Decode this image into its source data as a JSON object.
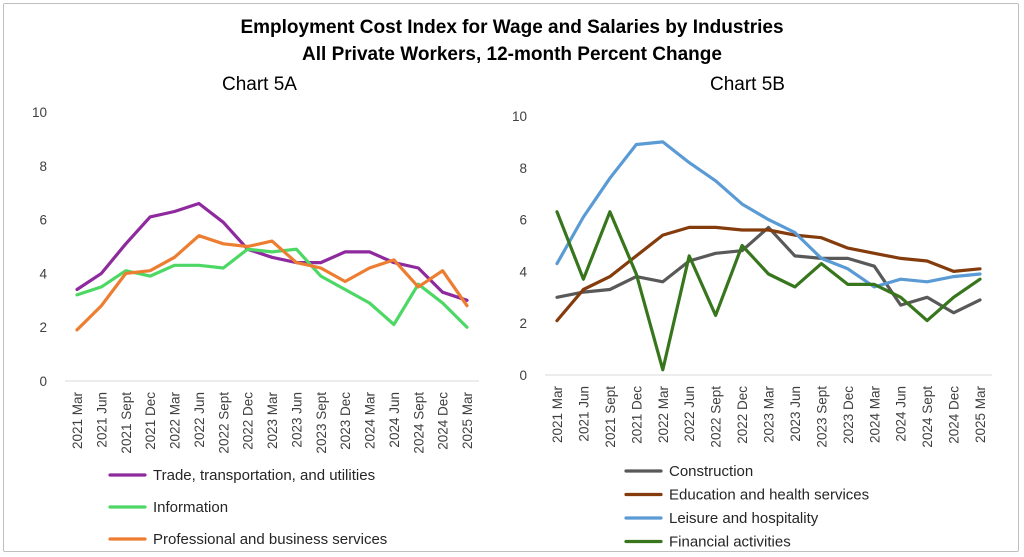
{
  "title_line1": "Employment Cost Index for Wage and Salaries by Industries",
  "title_line2": "All Private Workers, 12-month Percent Change",
  "chart_data": [
    {
      "type": "line",
      "subtitle": "Chart 5A",
      "categories": [
        "2021 Mar",
        "2021 Jun",
        "2021 Sept",
        "2021 Dec",
        "2022 Mar",
        "2022 Jun",
        "2022 Sept",
        "2022 Dec",
        "2023 Mar",
        "2023 Jun",
        "2023 Sept",
        "2023 Dec",
        "2024 Mar",
        "2024 Jun",
        "2024 Sept",
        "2024 Dec",
        "2025 Mar"
      ],
      "ylim": [
        0,
        10
      ],
      "yticks": [
        0,
        2,
        4,
        6,
        8,
        10
      ],
      "grid": false,
      "legend_position": "bottom",
      "series": [
        {
          "name": "Trade, transportation, and utilities",
          "color": "#8e2a9e",
          "values": [
            3.4,
            4.0,
            5.1,
            6.1,
            6.3,
            6.6,
            5.9,
            4.9,
            4.6,
            4.4,
            4.4,
            4.8,
            4.8,
            4.4,
            4.2,
            3.3,
            3.0
          ]
        },
        {
          "name": "Information",
          "color": "#4dd865",
          "values": [
            3.2,
            3.5,
            4.1,
            3.9,
            4.3,
            4.3,
            4.2,
            4.9,
            4.8,
            4.9,
            3.9,
            3.4,
            2.9,
            2.1,
            3.6,
            2.9,
            2.0
          ]
        },
        {
          "name": "Professional and business services",
          "color": "#ed7d31",
          "values": [
            1.9,
            2.8,
            4.0,
            4.1,
            4.6,
            5.4,
            5.1,
            5.0,
            5.2,
            4.4,
            4.2,
            3.7,
            4.2,
            4.5,
            3.5,
            4.1,
            2.8
          ]
        }
      ]
    },
    {
      "type": "line",
      "subtitle": "Chart 5B",
      "categories": [
        "2021 Mar",
        "2021 Jun",
        "2021 Sept",
        "2021 Dec",
        "2022 Mar",
        "2022 Jun",
        "2022 Sept",
        "2022 Dec",
        "2023 Mar",
        "2023 Jun",
        "2023 Sept",
        "2023 Dec",
        "2024 Mar",
        "2024 Jun",
        "2024 Sept",
        "2024 Dec",
        "2025 Mar"
      ],
      "ylim": [
        0,
        10
      ],
      "yticks": [
        0,
        2,
        4,
        6,
        8,
        10
      ],
      "grid": false,
      "legend_position": "bottom",
      "series": [
        {
          "name": "Construction",
          "color": "#595959",
          "values": [
            3.0,
            3.2,
            3.3,
            3.8,
            3.6,
            4.4,
            4.7,
            4.8,
            5.7,
            4.6,
            4.5,
            4.5,
            4.2,
            2.7,
            3.0,
            2.4,
            2.9
          ]
        },
        {
          "name": "Education and health services",
          "color": "#843c0c",
          "values": [
            2.1,
            3.3,
            3.8,
            4.6,
            5.4,
            5.7,
            5.7,
            5.6,
            5.6,
            5.4,
            5.3,
            4.9,
            4.7,
            4.5,
            4.4,
            4.0,
            4.1
          ]
        },
        {
          "name": "Leisure and hospitality",
          "color": "#5b9bd5",
          "values": [
            4.3,
            6.1,
            7.6,
            8.9,
            9.0,
            8.2,
            7.5,
            6.6,
            6.0,
            5.5,
            4.5,
            4.1,
            3.4,
            3.7,
            3.6,
            3.8,
            3.9
          ]
        },
        {
          "name": "Financial activities",
          "color": "#38761d",
          "values": [
            6.3,
            3.7,
            6.3,
            3.9,
            0.2,
            4.6,
            2.3,
            5.0,
            3.9,
            3.4,
            4.3,
            3.5,
            3.5,
            3.0,
            2.1,
            3.0,
            3.7
          ]
        }
      ]
    }
  ]
}
